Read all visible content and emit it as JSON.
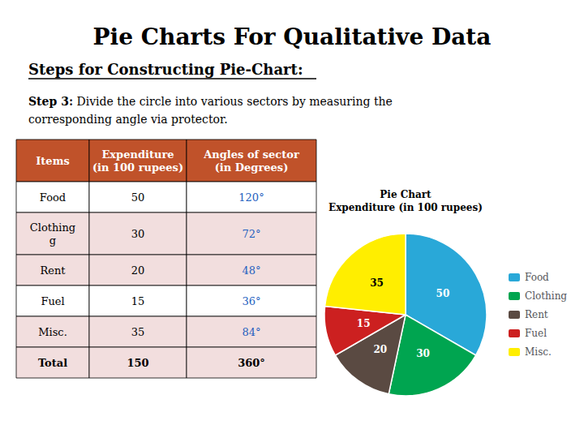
{
  "chart_data": {
    "type": "pie",
    "title": "Pie Charts For Qualitative Data",
    "subtitle": "Steps for Constructing Pie-Chart:",
    "annotations": [
      "Step 3:",
      "Divide the circle into various sectors by measuring the\ncorresponding angle via protector."
    ],
    "pie_title": "Pie Chart\nExpenditure (in 100 rupees)",
    "categories": [
      "Food",
      "Clothing",
      "Rent",
      "Fuel",
      "Misc."
    ],
    "values": [
      50,
      30,
      20,
      15,
      35
    ],
    "colors": [
      "#29a8d8",
      "#00a550",
      "#5a4a42",
      "#cc2020",
      "#ffee00"
    ],
    "data_labels": true,
    "legend": "right",
    "table": {
      "headers": [
        "Items",
        "Expenditure\n(in 100 rupees)",
        "Angles of sector\n(in Degrees)"
      ],
      "rows": [
        [
          "Food",
          "50",
          "120°"
        ],
        [
          "Clothing\ng",
          "30",
          "72°"
        ],
        [
          "Rent",
          "20",
          "48°"
        ],
        [
          "Fuel",
          "15",
          "36°"
        ],
        [
          "Misc.",
          "35",
          "84°"
        ],
        [
          "Total",
          "150",
          "360°"
        ]
      ],
      "header_color": "#c0522a",
      "header_text_color": "#ffffff",
      "row_colors": [
        "#ffffff",
        "#f2dede",
        "#f2dede",
        "#ffffff",
        "#f2dede",
        "#f2dede"
      ],
      "angle_color": "#1f5fc0"
    }
  }
}
